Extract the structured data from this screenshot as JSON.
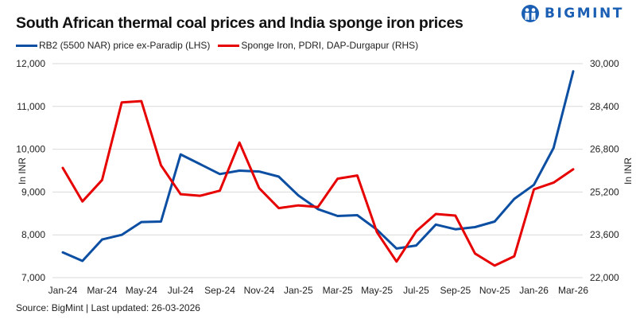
{
  "header": {
    "title": "South African thermal coal prices and India sponge iron prices",
    "logo_text": "BIGMINT"
  },
  "footer": {
    "source": "Source: BigMint | Last updated: 26-03-2026"
  },
  "chart_data": {
    "type": "line",
    "title": "South African thermal coal prices and India sponge iron prices",
    "xlabel": "",
    "ylabel_left": "In INR",
    "ylabel_right": "In INR",
    "x": [
      "Jan-24",
      "Feb-24",
      "Mar-24",
      "Apr-24",
      "May-24",
      "Jun-24",
      "Jul-24",
      "Aug-24",
      "Sep-24",
      "Oct-24",
      "Nov-24",
      "Dec-24",
      "Jan-25",
      "Feb-25",
      "Mar-25",
      "Apr-25",
      "May-25",
      "Jun-25",
      "Jul-25",
      "Aug-25",
      "Sep-25",
      "Oct-25",
      "Nov-25",
      "Dec-25",
      "Jan-26",
      "Feb-26",
      "Mar-26"
    ],
    "x_tick_labels": [
      "Jan-24",
      "Mar-24",
      "May-24",
      "Jul-24",
      "Sep-24",
      "Nov-24",
      "Jan-25",
      "Mar-25",
      "May-25",
      "Jul-25",
      "Sep-25",
      "Nov-25",
      "Jan-26",
      "Mar-26"
    ],
    "ylim_left": [
      7000,
      12000
    ],
    "yticks_left": [
      7000,
      8000,
      9000,
      10000,
      11000,
      12000
    ],
    "ytick_labels_left": [
      "7,000",
      "8,000",
      "9,000",
      "10,000",
      "11,000",
      "12,000"
    ],
    "ylim_right": [
      22000,
      30000
    ],
    "yticks_right": [
      22000,
      23600,
      25200,
      26800,
      28400,
      30000
    ],
    "ytick_labels_right": [
      "22,000",
      "23,600",
      "25,200",
      "26,800",
      "28,400",
      "30,000"
    ],
    "grid": true,
    "legend_position": "top-left",
    "series": [
      {
        "name": "RB2 (5500 NAR) price ex-Paradip (LHS)",
        "axis": "left",
        "color": "#0b4ea2",
        "values": [
          7590,
          7390,
          7890,
          8000,
          8300,
          8310,
          9880,
          9650,
          9420,
          9500,
          9480,
          9360,
          8920,
          8600,
          8440,
          8460,
          8120,
          7680,
          7750,
          8240,
          8130,
          8180,
          8310,
          8840,
          9170,
          10030,
          11820
        ]
      },
      {
        "name": "Sponge Iron, PDRI, DAP-Durgapur (RHS)",
        "axis": "right",
        "color": "#e60000",
        "values": [
          26100,
          24850,
          25650,
          28550,
          28600,
          26200,
          25120,
          25060,
          25250,
          27050,
          25350,
          24600,
          24700,
          24640,
          25700,
          25820,
          23700,
          22600,
          23730,
          24380,
          24320,
          22900,
          22450,
          22800,
          25300,
          25550,
          26050
        ]
      }
    ]
  }
}
